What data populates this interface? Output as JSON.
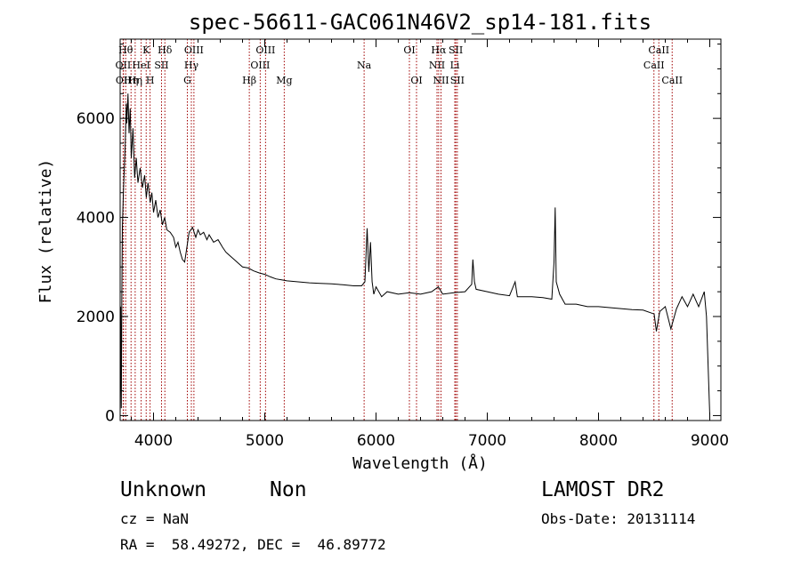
{
  "chart_data": {
    "type": "line",
    "title": "spec-56611-GAC061N46V2_sp14-181.fits",
    "xlabel": "Wavelength (Å)",
    "ylabel": "Flux (relative)",
    "xlim": [
      3700,
      9100
    ],
    "ylim": [
      -100,
      7600
    ],
    "x_ticks": [
      {
        "value": 4000,
        "label": "4000"
      },
      {
        "value": 5000,
        "label": "5000"
      },
      {
        "value": 6000,
        "label": "6000"
      },
      {
        "value": 7000,
        "label": "7000"
      },
      {
        "value": 8000,
        "label": "8000"
      },
      {
        "value": 9000,
        "label": "9000"
      }
    ],
    "y_ticks": [
      {
        "value": 0,
        "label": "0"
      },
      {
        "value": 2000,
        "label": "2000"
      },
      {
        "value": 4000,
        "label": "4000"
      },
      {
        "value": 6000,
        "label": "6000"
      }
    ],
    "series": [
      {
        "color": "#000000",
        "points": [
          [
            3700,
            0
          ],
          [
            3705,
            2200
          ],
          [
            3710,
            150
          ],
          [
            3715,
            2400
          ],
          [
            3720,
            3800
          ],
          [
            3730,
            4600
          ],
          [
            3745,
            5400
          ],
          [
            3755,
            6300
          ],
          [
            3760,
            5900
          ],
          [
            3770,
            6500
          ],
          [
            3780,
            5700
          ],
          [
            3790,
            6200
          ],
          [
            3800,
            5200
          ],
          [
            3815,
            5800
          ],
          [
            3830,
            4800
          ],
          [
            3845,
            5200
          ],
          [
            3860,
            4700
          ],
          [
            3880,
            5000
          ],
          [
            3900,
            4600
          ],
          [
            3920,
            4850
          ],
          [
            3935,
            4400
          ],
          [
            3950,
            4700
          ],
          [
            3970,
            4300
          ],
          [
            3985,
            4500
          ],
          [
            4000,
            4100
          ],
          [
            4020,
            4350
          ],
          [
            4040,
            4000
          ],
          [
            4060,
            4150
          ],
          [
            4080,
            3850
          ],
          [
            4100,
            4000
          ],
          [
            4120,
            3750
          ],
          [
            4150,
            3700
          ],
          [
            4180,
            3600
          ],
          [
            4200,
            3400
          ],
          [
            4220,
            3500
          ],
          [
            4240,
            3300
          ],
          [
            4260,
            3150
          ],
          [
            4280,
            3100
          ],
          [
            4300,
            3400
          ],
          [
            4320,
            3700
          ],
          [
            4350,
            3800
          ],
          [
            4380,
            3600
          ],
          [
            4400,
            3750
          ],
          [
            4420,
            3650
          ],
          [
            4450,
            3700
          ],
          [
            4480,
            3550
          ],
          [
            4500,
            3650
          ],
          [
            4540,
            3500
          ],
          [
            4580,
            3550
          ],
          [
            4620,
            3400
          ],
          [
            4650,
            3300
          ],
          [
            4700,
            3200
          ],
          [
            4750,
            3100
          ],
          [
            4800,
            3000
          ],
          [
            4850,
            2980
          ],
          [
            4900,
            2920
          ],
          [
            4950,
            2880
          ],
          [
            5000,
            2850
          ],
          [
            5050,
            2800
          ],
          [
            5100,
            2760
          ],
          [
            5150,
            2740
          ],
          [
            5200,
            2720
          ],
          [
            5300,
            2700
          ],
          [
            5400,
            2680
          ],
          [
            5500,
            2670
          ],
          [
            5600,
            2660
          ],
          [
            5700,
            2640
          ],
          [
            5800,
            2620
          ],
          [
            5870,
            2620
          ],
          [
            5900,
            2700
          ],
          [
            5920,
            3780
          ],
          [
            5935,
            2900
          ],
          [
            5950,
            3500
          ],
          [
            5965,
            2700
          ],
          [
            5980,
            2450
          ],
          [
            6000,
            2600
          ],
          [
            6050,
            2400
          ],
          [
            6100,
            2500
          ],
          [
            6200,
            2450
          ],
          [
            6300,
            2480
          ],
          [
            6400,
            2450
          ],
          [
            6500,
            2500
          ],
          [
            6560,
            2600
          ],
          [
            6600,
            2450
          ],
          [
            6700,
            2480
          ],
          [
            6800,
            2500
          ],
          [
            6860,
            2650
          ],
          [
            6870,
            3150
          ],
          [
            6885,
            2700
          ],
          [
            6900,
            2550
          ],
          [
            7000,
            2500
          ],
          [
            7100,
            2450
          ],
          [
            7200,
            2420
          ],
          [
            7250,
            2700
          ],
          [
            7270,
            2400
          ],
          [
            7400,
            2400
          ],
          [
            7500,
            2380
          ],
          [
            7580,
            2350
          ],
          [
            7600,
            3100
          ],
          [
            7610,
            4200
          ],
          [
            7620,
            2700
          ],
          [
            7650,
            2450
          ],
          [
            7700,
            2250
          ],
          [
            7800,
            2250
          ],
          [
            7900,
            2200
          ],
          [
            8000,
            2200
          ],
          [
            8100,
            2180
          ],
          [
            8200,
            2160
          ],
          [
            8300,
            2140
          ],
          [
            8400,
            2130
          ],
          [
            8500,
            2050
          ],
          [
            8520,
            1700
          ],
          [
            8550,
            2100
          ],
          [
            8600,
            2200
          ],
          [
            8650,
            1750
          ],
          [
            8700,
            2150
          ],
          [
            8750,
            2400
          ],
          [
            8800,
            2200
          ],
          [
            8850,
            2450
          ],
          [
            8900,
            2200
          ],
          [
            8950,
            2500
          ],
          [
            8970,
            2000
          ],
          [
            9000,
            0
          ]
        ]
      }
    ],
    "reference_lines": [
      {
        "wavelength": 3727,
        "label": "OII",
        "row": 2
      },
      {
        "wavelength": 3730,
        "label": "OII",
        "row": 3
      },
      {
        "wavelength": 3750,
        "label": "Hθ",
        "row": 1
      },
      {
        "wavelength": 3798,
        "label": "Hη",
        "row": 3
      },
      {
        "wavelength": 3835,
        "label": "Hη",
        "row": 3
      },
      {
        "wavelength": 3889,
        "label": "HeI",
        "row": 2
      },
      {
        "wavelength": 3934,
        "label": "K",
        "row": 1
      },
      {
        "wavelength": 3969,
        "label": "H",
        "row": 3
      },
      {
        "wavelength": 4072,
        "label": "SII",
        "row": 2
      },
      {
        "wavelength": 4102,
        "label": "Hδ",
        "row": 1
      },
      {
        "wavelength": 4304,
        "label": "G",
        "row": 3
      },
      {
        "wavelength": 4340,
        "label": "Hγ",
        "row": 2
      },
      {
        "wavelength": 4363,
        "label": "OIII",
        "row": 1
      },
      {
        "wavelength": 4861,
        "label": "Hβ",
        "row": 3
      },
      {
        "wavelength": 4959,
        "label": "OIII",
        "row": 2
      },
      {
        "wavelength": 5007,
        "label": "OIII",
        "row": 1
      },
      {
        "wavelength": 5175,
        "label": "Mg",
        "row": 3
      },
      {
        "wavelength": 5893,
        "label": "Na",
        "row": 2
      },
      {
        "wavelength": 6300,
        "label": "OI",
        "row": 1
      },
      {
        "wavelength": 6364,
        "label": "OI",
        "row": 3
      },
      {
        "wavelength": 6548,
        "label": "NII",
        "row": 2
      },
      {
        "wavelength": 6563,
        "label": "Hα",
        "row": 1
      },
      {
        "wavelength": 6584,
        "label": "NII",
        "row": 3
      },
      {
        "wavelength": 6708,
        "label": "Li",
        "row": 2
      },
      {
        "wavelength": 6717,
        "label": "SII",
        "row": 1
      },
      {
        "wavelength": 6731,
        "label": "SII",
        "row": 3
      },
      {
        "wavelength": 8498,
        "label": "CaII",
        "row": 2
      },
      {
        "wavelength": 8542,
        "label": "CaII",
        "row": 1
      },
      {
        "wavelength": 8662,
        "label": "CaII",
        "row": 3
      }
    ]
  },
  "info": {
    "object_class": "Unknown",
    "subclass": "Non",
    "redshift": "cz = NaN",
    "coordinates": "RA =  58.49272, DEC =  46.89772",
    "survey": "LAMOST DR2",
    "obs_date": "Obs-Date: 20131114"
  }
}
